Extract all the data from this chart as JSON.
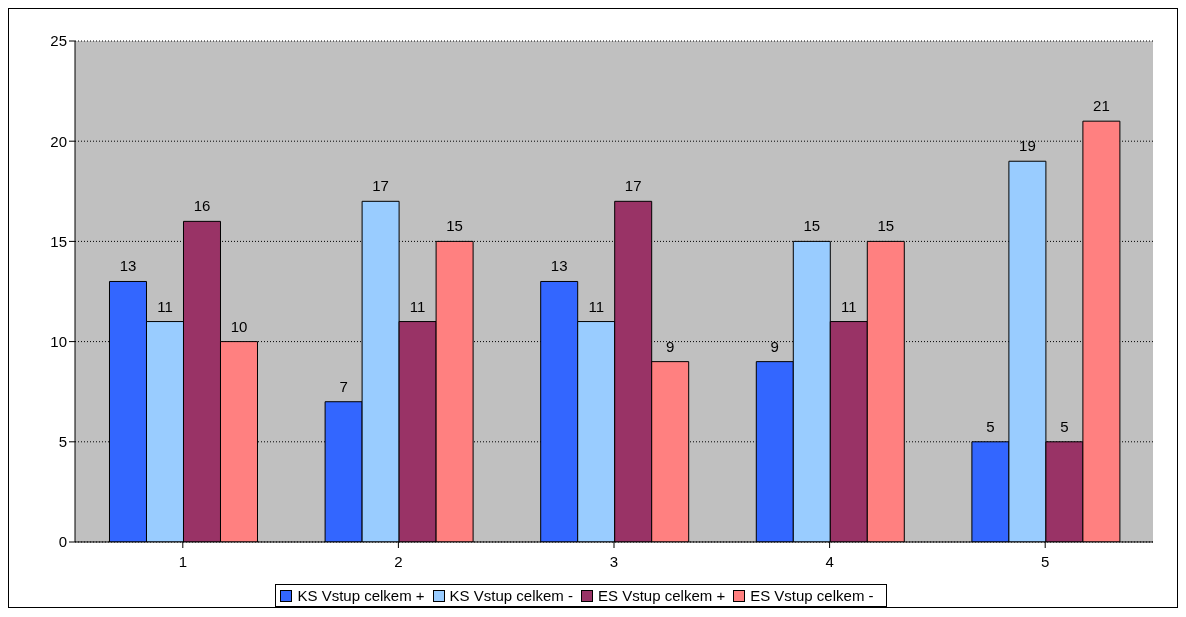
{
  "chart_data": {
    "type": "bar",
    "categories": [
      "1",
      "2",
      "3",
      "4",
      "5"
    ],
    "series": [
      {
        "name": "KS Vstup celkem +",
        "color": "#3366ff",
        "values": [
          13,
          7,
          13,
          9,
          5
        ]
      },
      {
        "name": "KS Vstup celkem -",
        "color": "#99ccff",
        "values": [
          11,
          17,
          11,
          15,
          19
        ]
      },
      {
        "name": "ES Vstup celkem +",
        "color": "#993366",
        "values": [
          16,
          11,
          17,
          11,
          5
        ]
      },
      {
        "name": "ES Vstup celkem -",
        "color": "#ff8080",
        "values": [
          10,
          15,
          9,
          15,
          21
        ]
      }
    ],
    "ylim": [
      0,
      25
    ],
    "yticks": [
      0,
      5,
      10,
      15,
      20,
      25
    ],
    "grid": "y",
    "legend": "bottom",
    "data_labels": true
  }
}
